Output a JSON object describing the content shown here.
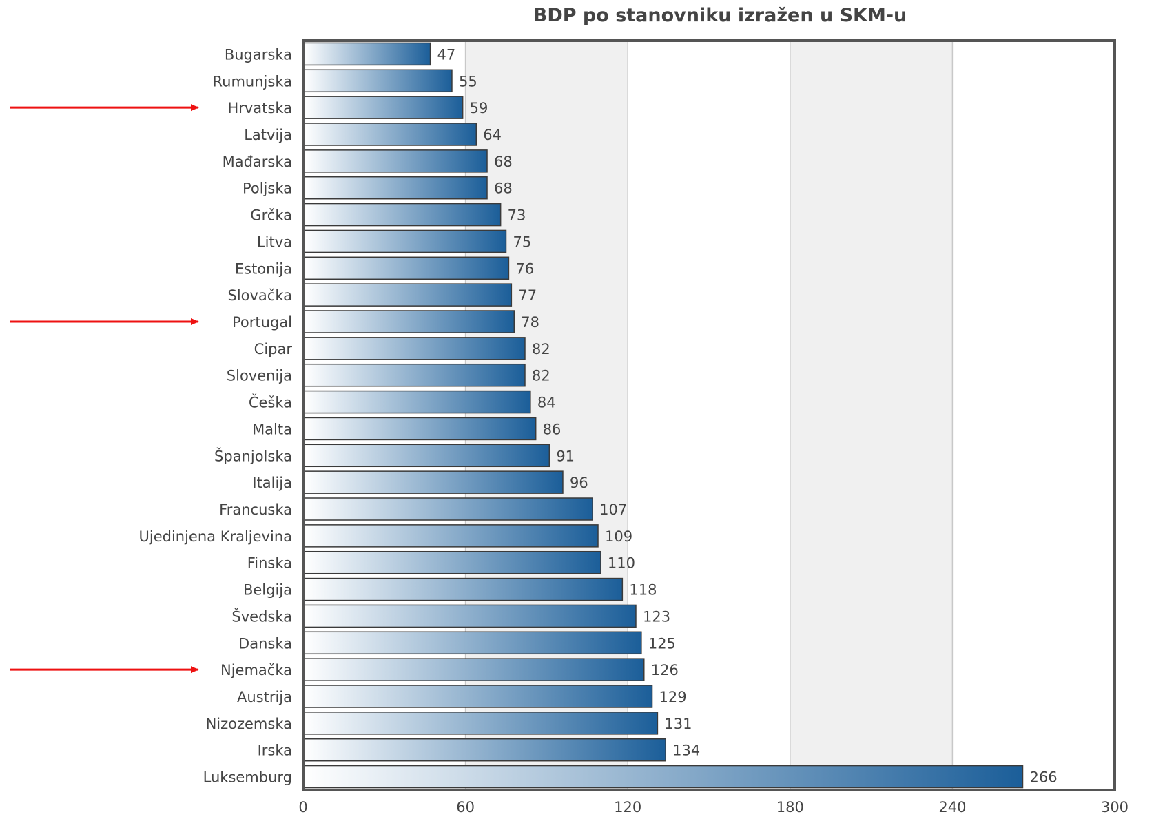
{
  "chart_data": {
    "type": "bar",
    "orientation": "horizontal",
    "title": "BDP po stanovniku izražen u SKM-u",
    "xlabel": "",
    "ylabel": "",
    "xlim": [
      0,
      300
    ],
    "x_ticks": [
      0,
      60,
      120,
      180,
      240,
      300
    ],
    "grid": true,
    "categories": [
      "Bugarska",
      "Rumunjska",
      "Hrvatska",
      "Latvija",
      "Mađarska",
      "Poljska",
      "Grčka",
      "Litva",
      "Estonija",
      "Slovačka",
      "Portugal",
      "Cipar",
      "Slovenija",
      "Češka",
      "Malta",
      "Španjolska",
      "Italija",
      "Francuska",
      "Ujedinjena Kraljevina",
      "Finska",
      "Belgija",
      "Švedska",
      "Danska",
      "Njemačka",
      "Austrija",
      "Nizozemska",
      "Irska",
      "Luksemburg"
    ],
    "values": [
      47,
      55,
      59,
      64,
      68,
      68,
      73,
      75,
      76,
      77,
      78,
      82,
      82,
      84,
      86,
      91,
      96,
      107,
      109,
      110,
      118,
      123,
      125,
      126,
      129,
      131,
      134,
      266
    ],
    "highlighted_categories": [
      "Hrvatska",
      "Portugal",
      "Njemačka"
    ]
  },
  "colors": {
    "bar_dark": "#1b5e99",
    "bar_light": "#ffffff",
    "band_shade": "#f0f0f0",
    "frame": "#555555",
    "arrow": "#ee1111",
    "text": "#444444"
  }
}
